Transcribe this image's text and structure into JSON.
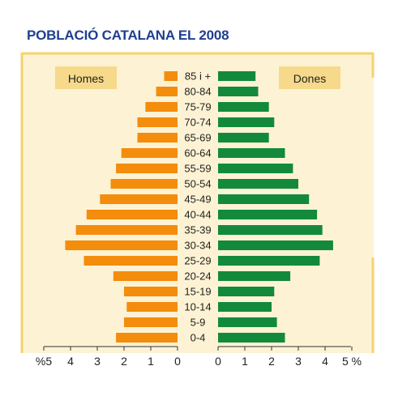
{
  "chart_data": {
    "type": "bar",
    "title": "POBLACIÓ CATALANA EL 2008",
    "categories": [
      "85 i +",
      "80-84",
      "75-79",
      "70-74",
      "65-69",
      "60-64",
      "55-59",
      "50-54",
      "45-49",
      "40-44",
      "35-39",
      "30-34",
      "25-29",
      "20-24",
      "15-19",
      "10-14",
      "5-9",
      "0-4"
    ],
    "series": [
      {
        "name": "Homes",
        "values": [
          0.5,
          0.8,
          1.2,
          1.5,
          1.5,
          2.1,
          2.3,
          2.5,
          2.9,
          3.4,
          3.8,
          4.2,
          3.5,
          2.4,
          2.0,
          1.9,
          2.0,
          2.3
        ]
      },
      {
        "name": "Dones",
        "values": [
          1.4,
          1.5,
          1.9,
          2.1,
          1.9,
          2.5,
          2.8,
          3.0,
          3.4,
          3.7,
          3.9,
          4.3,
          3.8,
          2.7,
          2.1,
          2.0,
          2.2,
          2.5
        ]
      }
    ],
    "xlim": [
      0,
      5
    ],
    "x_ticks_left": [
      "%5",
      "4",
      "3",
      "2",
      "1",
      "0"
    ],
    "x_ticks_right": [
      "0",
      "1",
      "2",
      "3",
      "4",
      "5 %"
    ],
    "colors": {
      "Homes": "#f48c0c",
      "Dones": "#138a3b",
      "panel": "#fdf3d4",
      "border": "#f5d36a",
      "label_box": "#f6d98a"
    },
    "legend": "top"
  }
}
